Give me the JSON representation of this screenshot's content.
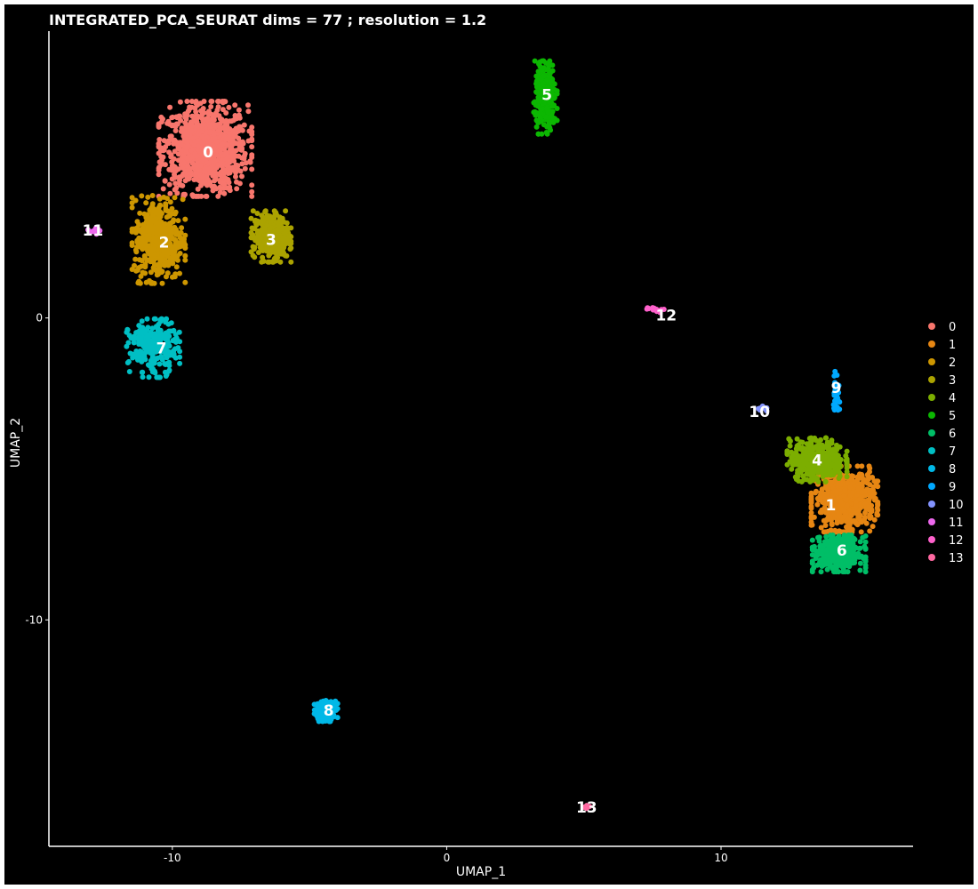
{
  "chart_data": {
    "type": "scatter",
    "title": "INTEGRATED_PCA_SEURAT dims =  77 ; resolution = 1.2",
    "xlabel": "UMAP_1",
    "ylabel": "UMAP_2",
    "xlim": [
      -14.5,
      17
    ],
    "ylim": [
      -17.5,
      9.5
    ],
    "x_ticks": [
      -10,
      0,
      10
    ],
    "y_ticks": [
      0,
      -10
    ],
    "grid": false,
    "legend_position": "right",
    "clusters": [
      {
        "name": "0",
        "color": "#F8766D",
        "center": [
          -8.8,
          5.6
        ],
        "spread": [
          1.4,
          1.3
        ],
        "n": 900,
        "label_pos": [
          -8.7,
          5.5
        ]
      },
      {
        "name": "1",
        "color": "#E68613",
        "center": [
          14.5,
          -6.0
        ],
        "spread": [
          1.0,
          0.9
        ],
        "n": 600,
        "label_pos": [
          14.0,
          -6.2
        ]
      },
      {
        "name": "2",
        "color": "#CD9600",
        "center": [
          -10.5,
          2.6
        ],
        "spread": [
          0.8,
          1.2
        ],
        "n": 450,
        "label_pos": [
          -10.3,
          2.5
        ]
      },
      {
        "name": "3",
        "color": "#ABA300",
        "center": [
          -6.4,
          2.7
        ],
        "spread": [
          0.6,
          0.7
        ],
        "n": 350,
        "label_pos": [
          -6.4,
          2.6
        ]
      },
      {
        "name": "4",
        "color": "#7CAE00",
        "center": [
          13.5,
          -4.7
        ],
        "spread": [
          0.9,
          0.6
        ],
        "n": 400,
        "label_pos": [
          13.5,
          -4.7
        ]
      },
      {
        "name": "5",
        "color": "#0CB702",
        "center": [
          3.6,
          7.3
        ],
        "spread": [
          0.35,
          1.0
        ],
        "n": 280,
        "label_pos": [
          3.65,
          7.4
        ]
      },
      {
        "name": "6",
        "color": "#00BE67",
        "center": [
          14.3,
          -7.8
        ],
        "spread": [
          0.8,
          0.5
        ],
        "n": 400,
        "label_pos": [
          14.4,
          -7.7
        ]
      },
      {
        "name": "7",
        "color": "#00BFC4",
        "center": [
          -10.7,
          -1.0
        ],
        "spread": [
          0.8,
          0.8
        ],
        "n": 250,
        "label_pos": [
          -10.4,
          -1.0
        ]
      },
      {
        "name": "8",
        "color": "#00B8E7",
        "center": [
          -4.4,
          -13.0
        ],
        "spread": [
          0.35,
          0.3
        ],
        "n": 180,
        "label_pos": [
          -4.3,
          -13.0
        ]
      },
      {
        "name": "9",
        "color": "#00A9FF",
        "center": [
          14.2,
          -2.5
        ],
        "spread": [
          0.1,
          0.6
        ],
        "n": 40,
        "label_pos": [
          14.2,
          -2.3
        ]
      },
      {
        "name": "10",
        "color": "#8494FF",
        "center": [
          11.5,
          -3.0
        ],
        "spread": [
          0.15,
          0.1
        ],
        "n": 15,
        "label_pos": [
          11.4,
          -3.1
        ]
      },
      {
        "name": "11",
        "color": "#ED68ED",
        "center": [
          -12.8,
          2.9
        ],
        "spread": [
          0.3,
          0.1
        ],
        "n": 15,
        "label_pos": [
          -12.9,
          2.9
        ]
      },
      {
        "name": "12",
        "color": "#FF61CC",
        "center": [
          7.6,
          0.3
        ],
        "spread": [
          0.3,
          0.1
        ],
        "n": 12,
        "label_pos": [
          8.0,
          0.1
        ]
      },
      {
        "name": "13",
        "color": "#FF68A1",
        "center": [
          5.1,
          -16.2
        ],
        "spread": [
          0.15,
          0.05
        ],
        "n": 8,
        "label_pos": [
          5.1,
          -16.2
        ]
      }
    ]
  }
}
